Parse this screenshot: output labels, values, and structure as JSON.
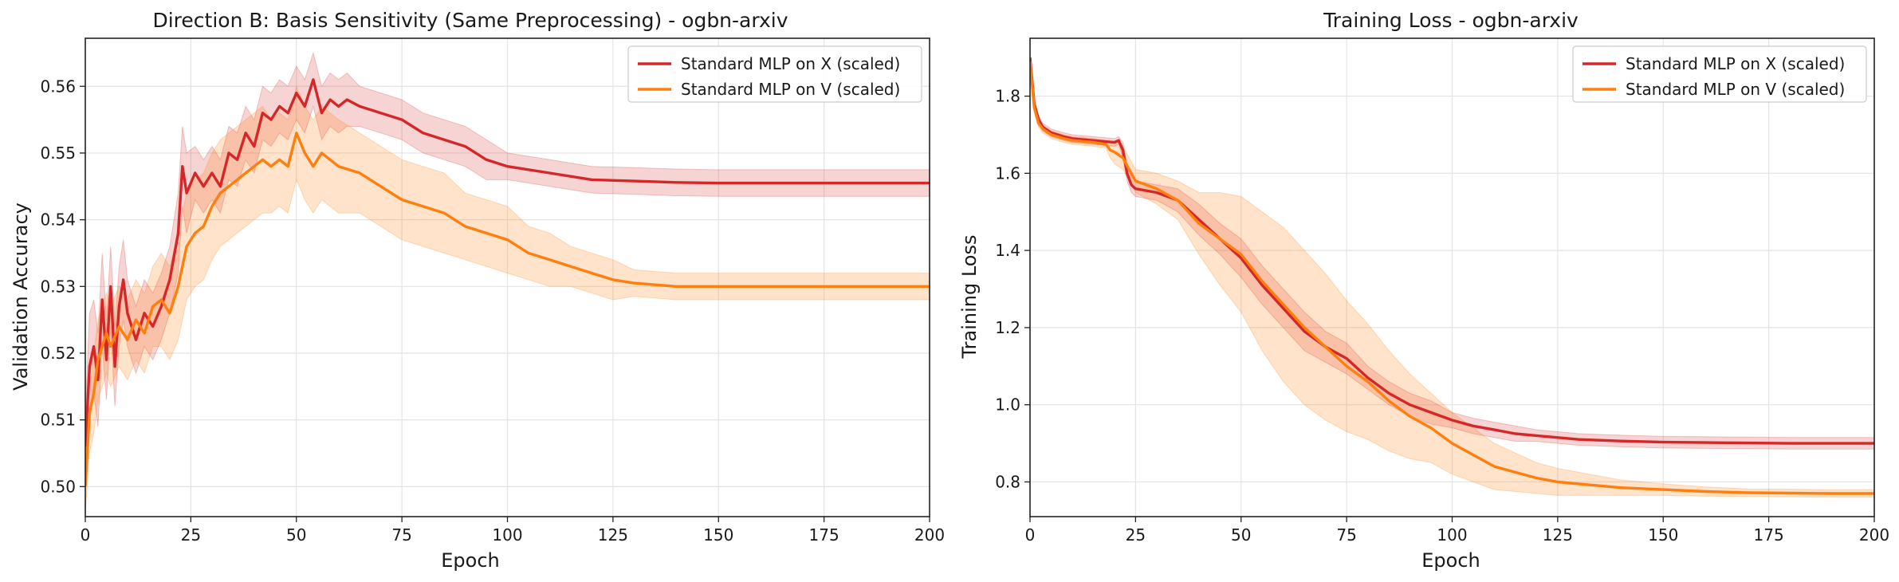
{
  "chart_data": [
    {
      "type": "line",
      "title": "Direction B: Basis Sensitivity (Same Preprocessing) - ogbn-arxiv",
      "xlabel": "Epoch",
      "ylabel": "Validation Accuracy",
      "xlim": [
        0,
        200
      ],
      "ylim": [
        0.4955,
        0.5672
      ],
      "xticks": [
        "0",
        "25",
        "50",
        "75",
        "100",
        "125",
        "150",
        "175",
        "200"
      ],
      "yticks": [
        "0.50",
        "0.51",
        "0.52",
        "0.53",
        "0.54",
        "0.55",
        "0.56"
      ],
      "grid": true,
      "legend_position": "top-right",
      "series": [
        {
          "name": "Standard MLP on X (scaled)",
          "color": "#d62728",
          "x": [
            0,
            1,
            2,
            3,
            4,
            5,
            6,
            7,
            8,
            9,
            10,
            12,
            14,
            16,
            18,
            20,
            22,
            23,
            24,
            26,
            28,
            30,
            32,
            34,
            36,
            38,
            40,
            42,
            44,
            46,
            48,
            50,
            52,
            54,
            56,
            58,
            60,
            62,
            65,
            70,
            75,
            80,
            85,
            90,
            95,
            100,
            110,
            120,
            130,
            140,
            150,
            160,
            170,
            180,
            190,
            200
          ],
          "values": [
            0.506,
            0.518,
            0.521,
            0.516,
            0.528,
            0.519,
            0.53,
            0.518,
            0.527,
            0.531,
            0.526,
            0.522,
            0.526,
            0.524,
            0.527,
            0.531,
            0.538,
            0.548,
            0.544,
            0.547,
            0.545,
            0.547,
            0.545,
            0.55,
            0.549,
            0.553,
            0.551,
            0.556,
            0.555,
            0.557,
            0.556,
            0.559,
            0.557,
            0.561,
            0.556,
            0.558,
            0.557,
            0.558,
            0.557,
            0.556,
            0.555,
            0.553,
            0.552,
            0.551,
            0.549,
            0.548,
            0.547,
            0.546,
            0.5458,
            0.5456,
            0.5455,
            0.5455,
            0.5455,
            0.5455,
            0.5455,
            0.5455
          ],
          "band_width": [
            0.005,
            0.008,
            0.007,
            0.007,
            0.007,
            0.006,
            0.006,
            0.006,
            0.006,
            0.006,
            0.005,
            0.005,
            0.005,
            0.005,
            0.005,
            0.005,
            0.006,
            0.006,
            0.006,
            0.004,
            0.004,
            0.004,
            0.004,
            0.004,
            0.004,
            0.004,
            0.004,
            0.004,
            0.004,
            0.004,
            0.004,
            0.004,
            0.004,
            0.004,
            0.004,
            0.004,
            0.004,
            0.004,
            0.003,
            0.003,
            0.003,
            0.003,
            0.003,
            0.003,
            0.003,
            0.002,
            0.002,
            0.002,
            0.002,
            0.002,
            0.002,
            0.002,
            0.002,
            0.002,
            0.002,
            0.002
          ]
        },
        {
          "name": "Standard MLP on V (scaled)",
          "color": "#ff7f0e",
          "x": [
            0,
            1,
            2,
            3,
            4,
            5,
            6,
            8,
            10,
            12,
            14,
            16,
            18,
            20,
            22,
            24,
            26,
            28,
            30,
            32,
            34,
            36,
            38,
            40,
            42,
            44,
            46,
            48,
            50,
            52,
            54,
            56,
            58,
            60,
            65,
            70,
            75,
            80,
            85,
            90,
            95,
            100,
            105,
            110,
            115,
            120,
            125,
            130,
            140,
            150,
            160,
            170,
            180,
            190,
            200
          ],
          "values": [
            0.5,
            0.511,
            0.514,
            0.519,
            0.521,
            0.523,
            0.521,
            0.524,
            0.522,
            0.525,
            0.523,
            0.527,
            0.528,
            0.526,
            0.53,
            0.536,
            0.538,
            0.539,
            0.542,
            0.544,
            0.545,
            0.546,
            0.547,
            0.548,
            0.549,
            0.548,
            0.549,
            0.548,
            0.553,
            0.55,
            0.548,
            0.55,
            0.549,
            0.548,
            0.547,
            0.545,
            0.543,
            0.542,
            0.541,
            0.539,
            0.538,
            0.537,
            0.535,
            0.534,
            0.533,
            0.532,
            0.531,
            0.5305,
            0.53,
            0.53,
            0.53,
            0.53,
            0.53,
            0.53,
            0.53
          ],
          "band_width": [
            0.004,
            0.006,
            0.006,
            0.006,
            0.006,
            0.006,
            0.006,
            0.006,
            0.006,
            0.006,
            0.006,
            0.006,
            0.007,
            0.007,
            0.008,
            0.008,
            0.008,
            0.008,
            0.008,
            0.008,
            0.008,
            0.008,
            0.008,
            0.008,
            0.008,
            0.007,
            0.007,
            0.007,
            0.007,
            0.007,
            0.007,
            0.007,
            0.007,
            0.007,
            0.006,
            0.006,
            0.006,
            0.006,
            0.006,
            0.005,
            0.005,
            0.005,
            0.004,
            0.004,
            0.003,
            0.003,
            0.003,
            0.002,
            0.002,
            0.002,
            0.002,
            0.002,
            0.002,
            0.002,
            0.002
          ]
        }
      ]
    },
    {
      "type": "line",
      "title": "Training Loss - ogbn-arxiv",
      "xlabel": "Epoch",
      "ylabel": "Training Loss",
      "xlim": [
        0,
        200
      ],
      "ylim": [
        0.71,
        1.95
      ],
      "xticks": [
        "0",
        "25",
        "50",
        "75",
        "100",
        "125",
        "150",
        "175",
        "200"
      ],
      "yticks": [
        "0.8",
        "1.0",
        "1.2",
        "1.4",
        "1.6",
        "1.8"
      ],
      "grid": true,
      "legend_position": "top-right",
      "series": [
        {
          "name": "Standard MLP on X (scaled)",
          "color": "#d62728",
          "x": [
            0,
            1,
            2,
            3,
            5,
            8,
            10,
            15,
            20,
            21,
            22,
            23,
            24,
            25,
            30,
            35,
            40,
            45,
            50,
            55,
            60,
            65,
            70,
            75,
            80,
            85,
            90,
            95,
            100,
            105,
            110,
            115,
            120,
            125,
            130,
            140,
            150,
            160,
            170,
            180,
            190,
            200
          ],
          "values": [
            1.9,
            1.78,
            1.74,
            1.72,
            1.705,
            1.695,
            1.69,
            1.685,
            1.68,
            1.685,
            1.66,
            1.6,
            1.57,
            1.56,
            1.55,
            1.53,
            1.48,
            1.43,
            1.38,
            1.31,
            1.25,
            1.19,
            1.15,
            1.12,
            1.07,
            1.03,
            1.0,
            0.98,
            0.96,
            0.945,
            0.935,
            0.925,
            0.92,
            0.915,
            0.91,
            0.906,
            0.903,
            0.902,
            0.901,
            0.9,
            0.9,
            0.9
          ],
          "band_width": [
            0.01,
            0.01,
            0.01,
            0.01,
            0.01,
            0.01,
            0.01,
            0.01,
            0.01,
            0.01,
            0.02,
            0.02,
            0.02,
            0.02,
            0.02,
            0.03,
            0.04,
            0.04,
            0.05,
            0.05,
            0.05,
            0.05,
            0.04,
            0.04,
            0.03,
            0.03,
            0.03,
            0.03,
            0.02,
            0.02,
            0.02,
            0.02,
            0.015,
            0.015,
            0.015,
            0.015,
            0.015,
            0.015,
            0.015,
            0.015,
            0.015,
            0.015
          ]
        },
        {
          "name": "Standard MLP on V (scaled)",
          "color": "#ff7f0e",
          "x": [
            0,
            1,
            2,
            3,
            5,
            8,
            10,
            15,
            18,
            19,
            20,
            22,
            24,
            25,
            30,
            35,
            40,
            45,
            50,
            55,
            60,
            65,
            70,
            75,
            80,
            85,
            90,
            95,
            100,
            105,
            110,
            115,
            120,
            125,
            130,
            135,
            140,
            150,
            160,
            170,
            180,
            190,
            200
          ],
          "values": [
            1.89,
            1.77,
            1.73,
            1.715,
            1.7,
            1.69,
            1.685,
            1.68,
            1.675,
            1.66,
            1.655,
            1.64,
            1.6,
            1.58,
            1.56,
            1.53,
            1.47,
            1.43,
            1.39,
            1.32,
            1.26,
            1.2,
            1.15,
            1.1,
            1.06,
            1.01,
            0.97,
            0.94,
            0.9,
            0.87,
            0.84,
            0.825,
            0.81,
            0.8,
            0.795,
            0.79,
            0.785,
            0.78,
            0.775,
            0.772,
            0.771,
            0.77,
            0.77
          ],
          "band_width": [
            0.01,
            0.01,
            0.01,
            0.01,
            0.01,
            0.01,
            0.01,
            0.01,
            0.01,
            0.02,
            0.03,
            0.03,
            0.03,
            0.03,
            0.04,
            0.05,
            0.08,
            0.12,
            0.15,
            0.18,
            0.2,
            0.2,
            0.19,
            0.17,
            0.15,
            0.13,
            0.11,
            0.09,
            0.08,
            0.07,
            0.06,
            0.05,
            0.04,
            0.035,
            0.03,
            0.025,
            0.02,
            0.015,
            0.012,
            0.01,
            0.01,
            0.01,
            0.01
          ]
        }
      ]
    }
  ]
}
